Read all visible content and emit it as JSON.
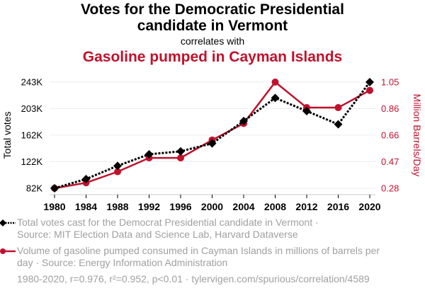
{
  "title_line1": "Votes for the Democratic Presidential",
  "title_line2": "candidate in Vermont",
  "subtitle": "correlates with",
  "title2": "Gasoline pumped in Cayman Islands",
  "colors": {
    "series1": "#000000",
    "series2": "#c0122c",
    "grid": "#eeeeee",
    "legend_text": "#a0a0a0"
  },
  "legend": [
    {
      "marker": "black-diamond-dotted-line",
      "text_line1": "Total votes cast for the Democrat Presidential candidate in Vermont ·",
      "text_line2": "Source: MIT Election Data and Science Lab, Harvard Dataverse"
    },
    {
      "marker": "red-circle-solid-line",
      "text_line1": "Volume of gasoline pumped consumed in Cayman Islands in millions of barrels per",
      "text_line2": "day · Source: Energy Information Administration"
    }
  ],
  "footer": "1980-2020, r=0.976, r²=0.952, p<0.01 · tylervigen.com/spurious/correlation/4589",
  "chart_data": {
    "type": "line",
    "title": "Votes for the Democratic Presidential candidate in Vermont correlates with Gasoline pumped in Cayman Islands",
    "xlabel": "",
    "x": [
      1980,
      1984,
      1988,
      1992,
      1996,
      2000,
      2004,
      2008,
      2012,
      2016,
      2020
    ],
    "x_tick_labels": [
      "1980",
      "1984",
      "1988",
      "1992",
      "1996",
      "2000",
      "2004",
      "2008",
      "2012",
      "2016",
      "2020"
    ],
    "grid": true,
    "legend_placement": "bottom",
    "y_left": {
      "label": "Total votes",
      "range": [
        82000,
        243000
      ],
      "tick_values": [
        82000,
        122250,
        162500,
        202750,
        243000
      ],
      "tick_labels": [
        "82K",
        "122K",
        "162K",
        "203K",
        "243K"
      ]
    },
    "y_right": {
      "label": "Million Barrels/Day",
      "range": [
        0.28,
        1.05
      ],
      "tick_values": [
        0.28,
        0.4725,
        0.665,
        0.8575,
        1.05
      ],
      "tick_labels": [
        "0.28",
        "0.47",
        "0.66",
        "0.86",
        "1.05"
      ]
    },
    "series": [
      {
        "name": "Total votes cast for the Democrat Presidential candidate in Vermont",
        "axis": "left",
        "style": "dotted-black-diamond",
        "values": [
          82000,
          96000,
          116000,
          133500,
          138000,
          150000,
          184000,
          219000,
          199000,
          179000,
          243000
        ]
      },
      {
        "name": "Volume of gasoline pumped consumed in Cayman Islands in millions of barrels per day",
        "axis": "right",
        "style": "solid-red-circle",
        "values": [
          0.28,
          0.32,
          0.4,
          0.5,
          0.5,
          0.63,
          0.75,
          1.05,
          0.865,
          0.865,
          0.99
        ]
      }
    ]
  }
}
